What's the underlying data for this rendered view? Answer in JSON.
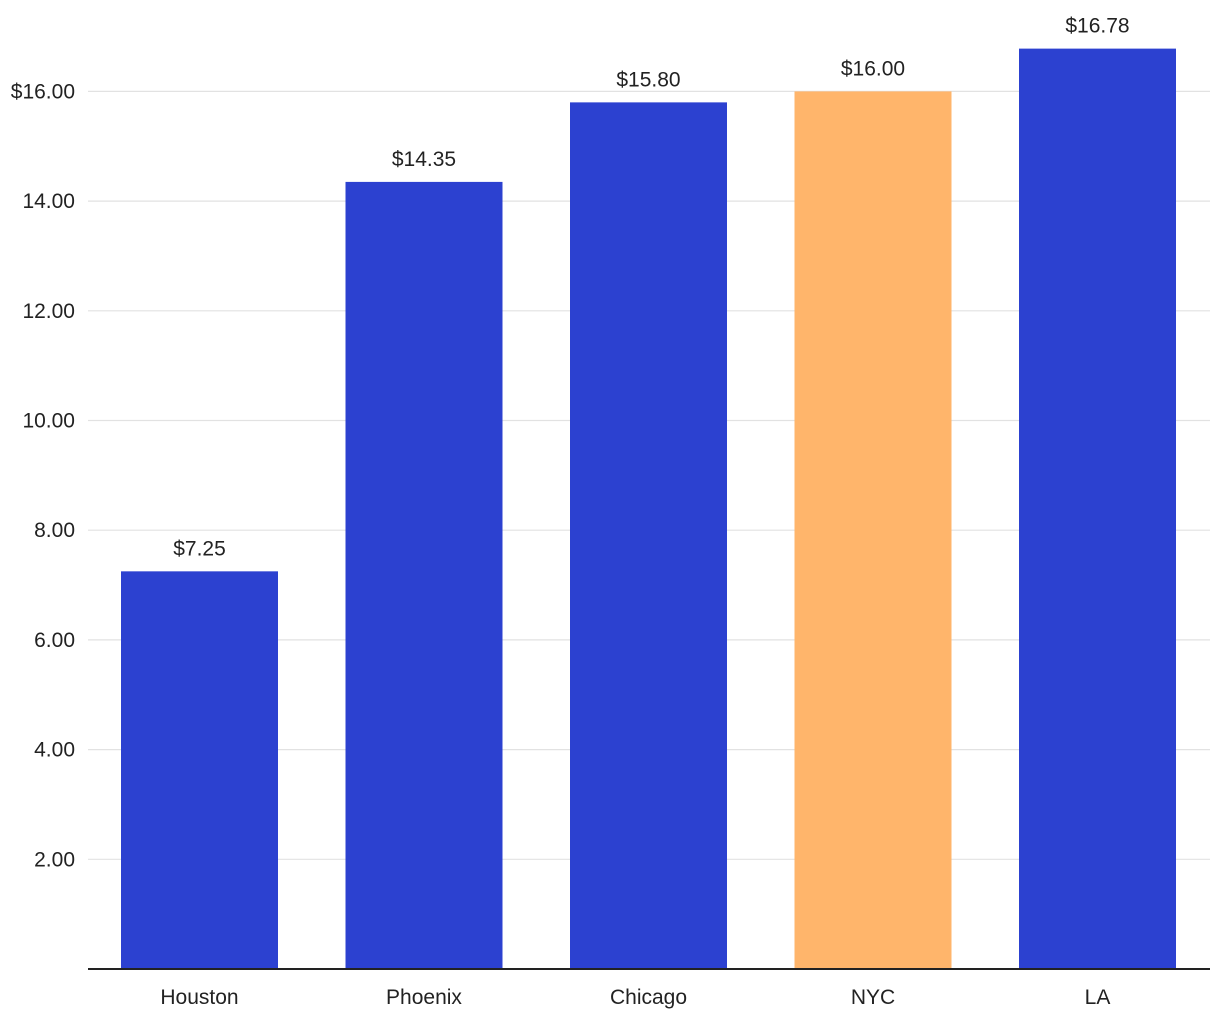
{
  "chart_data": {
    "type": "bar",
    "categories": [
      "Houston",
      "Phoenix",
      "Chicago",
      "NYC",
      "LA"
    ],
    "values": [
      7.25,
      14.35,
      15.8,
      16.0,
      16.78
    ],
    "data_labels": [
      "$7.25",
      "$14.35",
      "$15.80",
      "$16.00",
      "$16.78"
    ],
    "highlight_index": 3,
    "title": "",
    "xlabel": "",
    "ylabel": "",
    "ylim": [
      0,
      16.78
    ],
    "yticks": [
      2,
      4,
      6,
      8,
      10,
      12,
      14,
      16
    ],
    "ytick_labels": [
      "2.00",
      "4.00",
      "6.00",
      "8.00",
      "10.00",
      "12.00",
      "14.00",
      "$16.00"
    ],
    "grid": true,
    "legend": "none",
    "colors": {
      "bar": "#2c41d0",
      "highlight": "#ffb56b",
      "grid": "#e2e2e2",
      "axis": "#222222",
      "text": "#222222"
    }
  }
}
